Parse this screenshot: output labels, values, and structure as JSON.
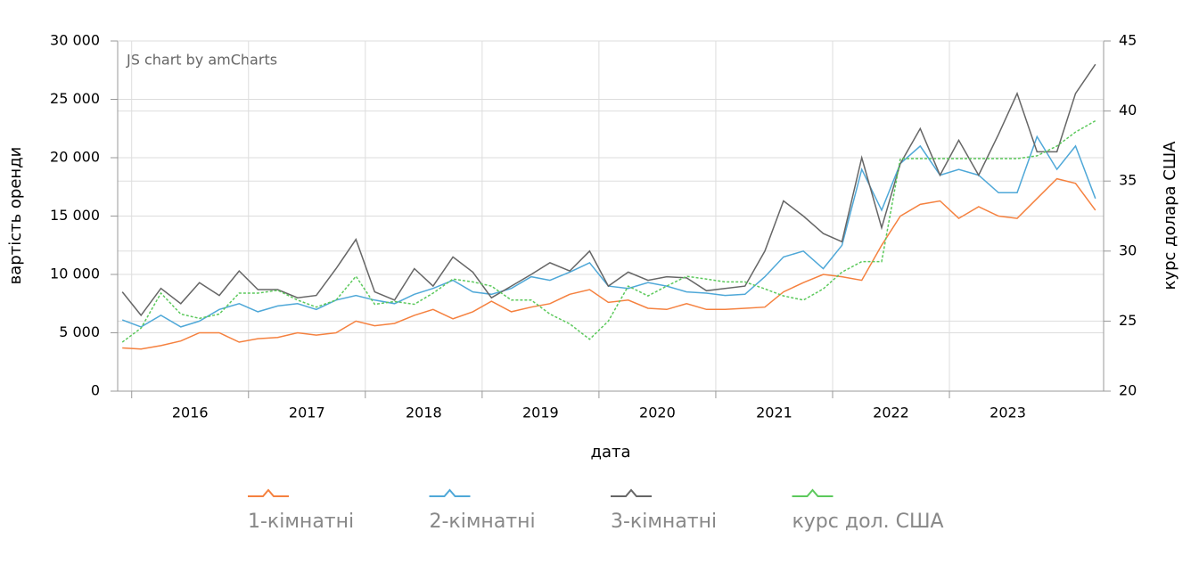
{
  "chart_data": {
    "type": "line",
    "watermark": "JS chart by amCharts",
    "xlabel": "дата",
    "ylabel": "вартість оренди",
    "y2label": "курс долара США",
    "x": [
      2015.92,
      2016.08,
      2016.25,
      2016.42,
      2016.58,
      2016.75,
      2016.92,
      2017.08,
      2017.25,
      2017.42,
      2017.58,
      2017.75,
      2017.92,
      2018.08,
      2018.25,
      2018.42,
      2018.58,
      2018.75,
      2018.92,
      2019.08,
      2019.25,
      2019.42,
      2019.58,
      2019.75,
      2019.92,
      2020.08,
      2020.25,
      2020.42,
      2020.58,
      2020.75,
      2020.92,
      2021.08,
      2021.25,
      2021.42,
      2021.58,
      2021.75,
      2021.92,
      2022.08,
      2022.25,
      2022.42,
      2022.58,
      2022.75,
      2022.92,
      2023.08,
      2023.25,
      2023.42,
      2023.58,
      2023.75,
      2023.92,
      2024.08,
      2024.25
    ],
    "xlim": [
      2015.88,
      2024.32
    ],
    "xticks": [
      2016,
      2017,
      2018,
      2019,
      2020,
      2021,
      2022,
      2023
    ],
    "ylim": [
      0,
      30000
    ],
    "yticks": [
      0,
      {
        "value": 5000,
        "label": "5 000"
      },
      {
        "value": 10000,
        "label": "10 000"
      },
      {
        "value": 15000,
        "label": "15 000"
      },
      {
        "value": 20000,
        "label": "20 000"
      },
      {
        "value": 25000,
        "label": "25 000"
      },
      {
        "value": 30000,
        "label": "30 000"
      }
    ],
    "y2lim": [
      20,
      45
    ],
    "y2ticks": [
      20,
      25,
      30,
      35,
      40,
      45
    ],
    "grid": true,
    "legend": "bottom",
    "series": [
      {
        "name": "1-кімнатні",
        "color": "#f5813f",
        "values": [
          3700,
          3600,
          3900,
          4300,
          5000,
          5000,
          4200,
          4500,
          4600,
          5000,
          4800,
          5000,
          6000,
          5600,
          5800,
          6500,
          7000,
          6200,
          6800,
          7700,
          6800,
          7200,
          7500,
          8300,
          8700,
          7600,
          7800,
          7100,
          7000,
          7500,
          7000,
          7000,
          7100,
          7200,
          8500,
          9300,
          10000,
          9800,
          9500,
          12500,
          15000,
          16000,
          16300,
          14800,
          15800,
          15000,
          14800,
          16500,
          18200,
          17800,
          15500
        ]
      },
      {
        "name": "2-кімнатні",
        "color": "#4fa8d8",
        "values": [
          6100,
          5500,
          6500,
          5500,
          6000,
          7000,
          7500,
          6800,
          7300,
          7500,
          7000,
          7800,
          8200,
          7800,
          7500,
          8300,
          8800,
          9500,
          8500,
          8300,
          8800,
          9800,
          9500,
          10200,
          11000,
          9000,
          8800,
          9300,
          9000,
          8500,
          8400,
          8200,
          8300,
          9800,
          11500,
          12000,
          10500,
          12500,
          19000,
          15500,
          19500,
          21000,
          18500,
          19000,
          18500,
          17000,
          17000,
          21800,
          19000,
          21000,
          16500
        ]
      },
      {
        "name": "3-кімнатні",
        "color": "#666666",
        "values": [
          8500,
          6500,
          8800,
          7500,
          9300,
          8200,
          10300,
          8700,
          8700,
          8000,
          8200,
          10500,
          13000,
          8500,
          7800,
          10500,
          9000,
          11500,
          10200,
          8000,
          9000,
          10000,
          11000,
          10300,
          12000,
          9000,
          10200,
          9500,
          9800,
          9700,
          8600,
          8800,
          9000,
          12000,
          16300,
          15000,
          13500,
          12800,
          20000,
          14000,
          19500,
          22500,
          18500,
          21500,
          18500,
          22000,
          25500,
          20500,
          20500,
          25500,
          28000
        ]
      },
      {
        "name": "курс дол. США",
        "color": "#5cc95c",
        "axis": "y2",
        "dashed": true,
        "values": [
          23.5,
          24.5,
          27,
          25.5,
          25.2,
          25.5,
          27,
          27,
          27.2,
          26.5,
          26,
          26.5,
          28.2,
          26.2,
          26.4,
          26.2,
          27,
          28,
          27.8,
          27.5,
          26.5,
          26.5,
          25.5,
          24.8,
          23.7,
          25,
          27.5,
          26.8,
          27.5,
          28.2,
          28,
          27.8,
          27.8,
          27.3,
          26.8,
          26.5,
          27.3,
          28.5,
          29.25,
          29.25,
          36.6,
          36.6,
          36.6,
          36.6,
          36.6,
          36.6,
          36.6,
          36.8,
          37.5,
          38.5,
          39.3
        ]
      }
    ]
  }
}
